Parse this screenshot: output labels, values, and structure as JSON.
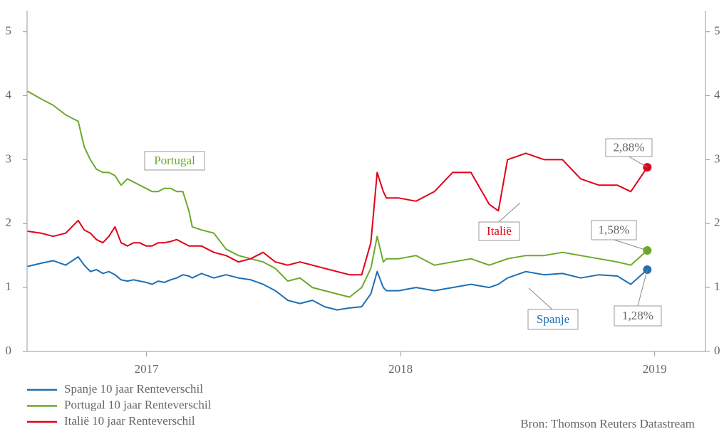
{
  "chart_data": {
    "type": "line",
    "x": [
      2016.532,
      2016.585,
      2016.633,
      2016.682,
      2016.731,
      2016.755,
      2016.779,
      2016.803,
      2016.828,
      2016.852,
      2016.876,
      2016.9,
      2016.925,
      2016.949,
      2016.973,
      2016.998,
      2017.022,
      2017.046,
      2017.07,
      2017.095,
      2017.119,
      2017.143,
      2017.167,
      2017.18,
      2017.216,
      2017.265,
      2017.313,
      2017.362,
      2017.41,
      2017.459,
      2017.507,
      2017.556,
      2017.604,
      2017.653,
      2017.701,
      2017.75,
      2017.799,
      2017.847,
      2017.883,
      2017.908,
      2017.932,
      2017.944,
      2017.993,
      2018.061,
      2018.133,
      2018.205,
      2018.277,
      2018.349,
      2018.385,
      2018.421,
      2018.493,
      2018.565,
      2018.637,
      2018.709,
      2018.781,
      2018.853,
      2018.906,
      2018.971
    ],
    "series": [
      {
        "name": "Spanje 10 jaar Renteverschil",
        "color": "#1f6fb4",
        "annotation": "Spanje",
        "end_label": "1,28%",
        "values": [
          1.33,
          1.38,
          1.42,
          1.35,
          1.48,
          1.35,
          1.25,
          1.28,
          1.22,
          1.25,
          1.2,
          1.12,
          1.1,
          1.12,
          1.1,
          1.08,
          1.05,
          1.1,
          1.08,
          1.12,
          1.15,
          1.2,
          1.18,
          1.15,
          1.22,
          1.15,
          1.2,
          1.15,
          1.12,
          1.05,
          0.95,
          0.8,
          0.75,
          0.8,
          0.7,
          0.65,
          0.68,
          0.7,
          0.9,
          1.25,
          1.0,
          0.95,
          0.95,
          1.0,
          0.95,
          1.0,
          1.05,
          1.0,
          1.05,
          1.15,
          1.25,
          1.2,
          1.22,
          1.15,
          1.2,
          1.18,
          1.05,
          1.28
        ]
      },
      {
        "name": "Portugal 10 jaar Renteverschil",
        "color": "#6aaa2a",
        "annotation": "Portugal",
        "end_label": "1,58%",
        "values": [
          4.07,
          3.95,
          3.85,
          3.7,
          3.6,
          3.2,
          3.0,
          2.85,
          2.8,
          2.8,
          2.75,
          2.6,
          2.7,
          2.65,
          2.6,
          2.55,
          2.5,
          2.5,
          2.55,
          2.55,
          2.5,
          2.5,
          2.2,
          1.95,
          1.9,
          1.85,
          1.6,
          1.5,
          1.45,
          1.4,
          1.3,
          1.1,
          1.15,
          1.0,
          0.95,
          0.9,
          0.85,
          1.0,
          1.3,
          1.8,
          1.4,
          1.45,
          1.45,
          1.5,
          1.35,
          1.4,
          1.45,
          1.35,
          1.4,
          1.45,
          1.5,
          1.5,
          1.55,
          1.5,
          1.45,
          1.4,
          1.35,
          1.58
        ]
      },
      {
        "name": "Italië 10 jaar Renteverschil",
        "color": "#e2001a",
        "annotation": "Italië",
        "end_label": "2,88%",
        "values": [
          1.88,
          1.85,
          1.8,
          1.85,
          2.05,
          1.9,
          1.85,
          1.75,
          1.7,
          1.8,
          1.95,
          1.7,
          1.65,
          1.7,
          1.7,
          1.65,
          1.65,
          1.7,
          1.7,
          1.72,
          1.75,
          1.7,
          1.65,
          1.65,
          1.65,
          1.55,
          1.5,
          1.4,
          1.45,
          1.55,
          1.4,
          1.35,
          1.4,
          1.35,
          1.3,
          1.25,
          1.2,
          1.2,
          1.7,
          2.8,
          2.5,
          2.4,
          2.4,
          2.35,
          2.5,
          2.8,
          2.8,
          2.3,
          2.2,
          3.0,
          3.1,
          3.0,
          3.0,
          2.7,
          2.6,
          2.6,
          2.5,
          2.88
        ]
      }
    ],
    "xlim": [
      2016.53,
      2019.2
    ],
    "xticks": [
      2017,
      2018,
      2019
    ],
    "ylim": [
      0,
      5.33
    ],
    "yticks": [
      0,
      1,
      2,
      3,
      4,
      5
    ],
    "y2lim": [
      0,
      5.33
    ],
    "y2ticks": [
      0,
      1,
      2,
      3,
      4,
      5
    ],
    "source": "Bron: Thomson Reuters Datastream"
  }
}
